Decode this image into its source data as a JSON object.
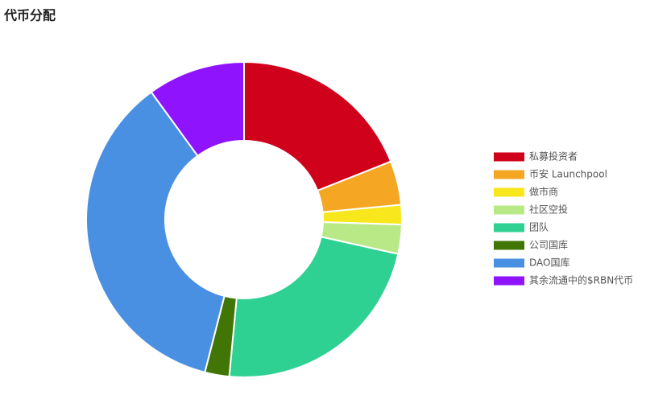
{
  "chart_data": {
    "type": "doughnut",
    "title": "代币分配",
    "series": [
      {
        "name": "私募投资者",
        "color": "#d0021b",
        "values": [
          19
        ]
      },
      {
        "name": "币安 Launchpool",
        "color": "#f5a623",
        "values": [
          4.5
        ]
      },
      {
        "name": "做市商",
        "color": "#f8e71c",
        "values": [
          2
        ]
      },
      {
        "name": "社区空投",
        "color": "#b8e986",
        "values": [
          3
        ]
      },
      {
        "name": "团队",
        "color": "#2fd192",
        "values": [
          23
        ]
      },
      {
        "name": "公司国库",
        "color": "#417505",
        "values": [
          2.5
        ]
      },
      {
        "name": "DAO国库",
        "color": "#4a90e2",
        "values": [
          36
        ]
      },
      {
        "name": "其余流通中的$RBN代币",
        "color": "#9013fe",
        "values": [
          10
        ]
      }
    ],
    "legend": "right"
  }
}
